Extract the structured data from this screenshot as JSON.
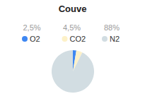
{
  "chart_data": {
    "type": "pie",
    "title": "Couve",
    "categories": [
      "O2",
      "CO2",
      "N2"
    ],
    "values": [
      2.5,
      4.5,
      88
    ],
    "value_labels": [
      "2,5%",
      "4,5%",
      "88%"
    ],
    "colors": [
      "#3e87f2",
      "#fdf1c8",
      "#d2dde2"
    ],
    "legend": "top"
  }
}
